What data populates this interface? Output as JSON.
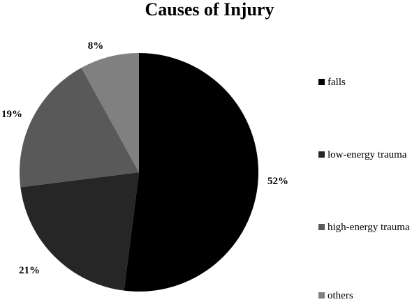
{
  "chart_data": {
    "type": "pie",
    "title": "Causes of Injury",
    "categories": [
      "falls",
      "low-energy trauma",
      "high-energy trauma",
      "others"
    ],
    "values": [
      52,
      21,
      19,
      8
    ],
    "labels": [
      "52%",
      "21%",
      "19%",
      "8%"
    ],
    "colors": [
      "#000000",
      "#262626",
      "#595959",
      "#808080"
    ],
    "legend_position": "right"
  }
}
